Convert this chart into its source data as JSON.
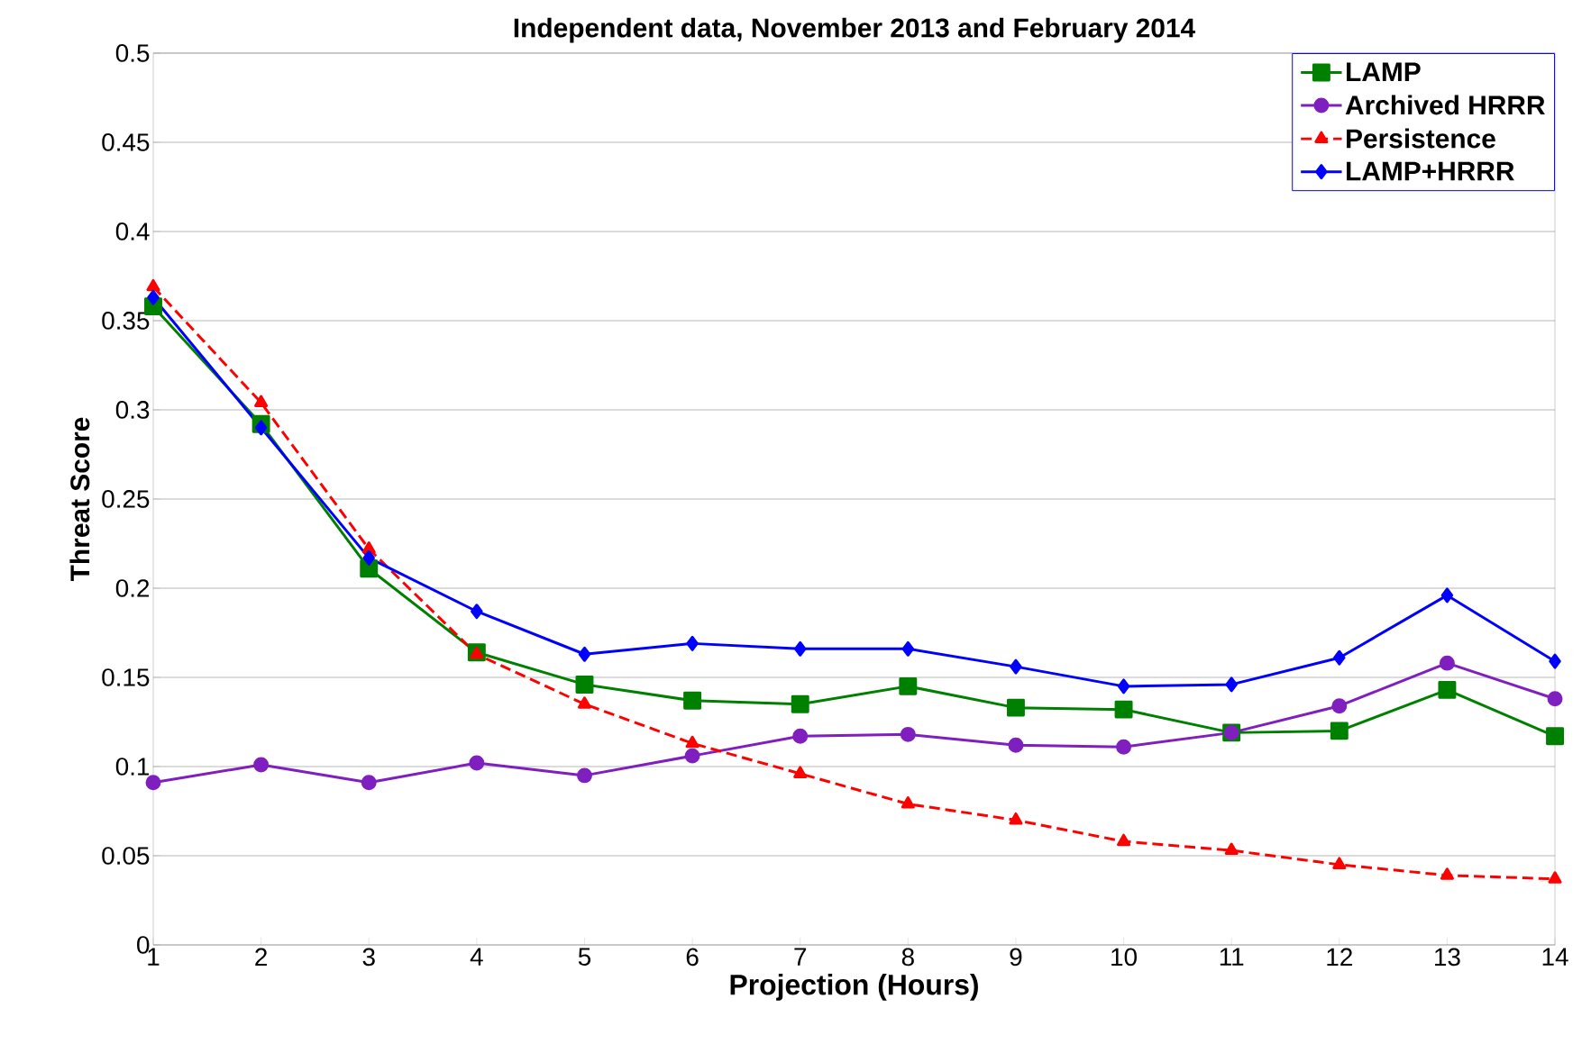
{
  "chart_data": {
    "type": "line",
    "title": "Independent data, November 2013 and February 2014",
    "xlabel": "Projection (Hours)",
    "ylabel": "Threat Score",
    "x": [
      1,
      2,
      3,
      4,
      5,
      6,
      7,
      8,
      9,
      10,
      11,
      12,
      13,
      14
    ],
    "xlim": [
      1,
      14
    ],
    "xticks": [
      1,
      2,
      3,
      4,
      5,
      6,
      7,
      8,
      9,
      10,
      11,
      12,
      13,
      14
    ],
    "ylim": [
      0,
      0.5
    ],
    "yticks": [
      0,
      0.05,
      0.1,
      0.15,
      0.2,
      0.25,
      0.3,
      0.35,
      0.4,
      0.45,
      0.5
    ],
    "grid": "y",
    "legend": "top right",
    "series": [
      {
        "name": "LAMP",
        "color": "#008000",
        "marker": "square",
        "line_style": "solid",
        "values": [
          0.358,
          0.292,
          0.211,
          0.164,
          0.146,
          0.137,
          0.135,
          0.145,
          0.133,
          0.132,
          0.119,
          0.12,
          0.143,
          0.117
        ]
      },
      {
        "name": "Archived HRRR",
        "color": "#7f1fbf",
        "marker": "circle",
        "line_style": "solid",
        "values": [
          0.091,
          0.101,
          0.091,
          0.102,
          0.095,
          0.106,
          0.117,
          0.118,
          0.112,
          0.111,
          0.119,
          0.134,
          0.158,
          0.138
        ]
      },
      {
        "name": "Persistence",
        "color": "#ff0000",
        "marker": "triangle",
        "line_style": "dashed",
        "values": [
          0.369,
          0.304,
          0.222,
          0.163,
          0.135,
          0.113,
          0.096,
          0.079,
          0.07,
          0.058,
          0.053,
          0.045,
          0.039,
          0.037
        ]
      },
      {
        "name": "LAMP+HRRR",
        "color": "#0000ff",
        "marker": "diamond",
        "line_style": "solid",
        "values": [
          0.363,
          0.29,
          0.217,
          0.187,
          0.163,
          0.169,
          0.166,
          0.166,
          0.156,
          0.145,
          0.146,
          0.161,
          0.196,
          0.159
        ]
      }
    ]
  }
}
